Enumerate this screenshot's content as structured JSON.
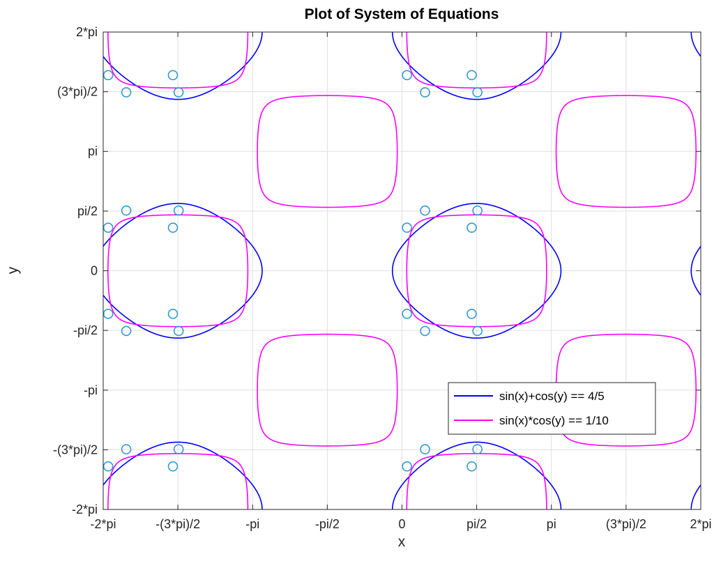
{
  "chart_data": {
    "type": "line",
    "title": "Plot of System of Equations",
    "xlabel": "x",
    "ylabel": "y",
    "xlim": [
      -6.283185,
      6.283185
    ],
    "ylim": [
      -6.283185,
      6.283185
    ],
    "grid": true,
    "x_ticks": {
      "values": [
        -6.283185,
        -4.712389,
        -3.141593,
        -1.570796,
        0,
        1.570796,
        3.141593,
        4.712389,
        6.283185
      ],
      "labels": [
        "-2*pi",
        "-(3*pi)/2",
        "-pi",
        "-pi/2",
        "0",
        "pi/2",
        "pi",
        "(3*pi)/2",
        "2*pi"
      ]
    },
    "y_ticks": {
      "values": [
        -6.283185,
        -4.712389,
        -3.141593,
        -1.570796,
        0,
        1.570796,
        3.141593,
        4.712389,
        6.283185
      ],
      "labels": [
        "-2*pi",
        "-(3*pi)/2",
        "-pi",
        "-pi/2",
        "0",
        "pi/2",
        "pi",
        "(3*pi)/2",
        "2*pi"
      ]
    },
    "legend": {
      "position": "lower-right",
      "entries": [
        {
          "label": "sin(x)+cos(y) == 4/5",
          "color": "#0000ff"
        },
        {
          "label": "sin(x)*cos(y) == 1/10",
          "color": "#ff00ff"
        }
      ]
    },
    "series": [
      {
        "name": "sin(x)+cos(y) == 4/5",
        "kind": "implicit",
        "equation": "sin(x)+cos(y)-0.8",
        "color": "#0000ff"
      },
      {
        "name": "sin(x)*cos(y) == 1/10",
        "kind": "implicit",
        "equation": "sin(x)*cos(y)-0.1",
        "color": "#ff00ff"
      }
    ],
    "intersection_points": {
      "color": "#3399cc",
      "marker": "circle",
      "base_points": [
        [
          0.105,
          1.134
        ],
        [
          0.485,
          1.585
        ],
        [
          1.586,
          1.585
        ],
        [
          1.466,
          1.134
        ],
        [
          0.105,
          -1.134
        ],
        [
          0.485,
          -1.585
        ],
        [
          1.586,
          -1.585
        ],
        [
          1.466,
          -1.134
        ]
      ],
      "visible_points": [
        [
          0.105,
          1.134
        ],
        [
          0.485,
          1.585
        ],
        [
          1.586,
          1.585
        ],
        [
          1.466,
          1.134
        ],
        [
          0.105,
          -1.134
        ],
        [
          0.485,
          -1.585
        ],
        [
          1.586,
          -1.585
        ],
        [
          1.466,
          -1.134
        ],
        [
          -6.178,
          1.134
        ],
        [
          -5.798,
          1.585
        ],
        [
          -4.697,
          1.585
        ],
        [
          -4.817,
          1.134
        ],
        [
          -6.178,
          -1.134
        ],
        [
          -5.798,
          -1.585
        ],
        [
          -4.697,
          -1.585
        ],
        [
          -4.817,
          -1.134
        ],
        [
          0.105,
          5.149
        ],
        [
          0.485,
          4.698
        ],
        [
          1.586,
          4.698
        ],
        [
          1.466,
          5.149
        ],
        [
          -6.178,
          5.149
        ],
        [
          -5.798,
          4.698
        ],
        [
          -4.697,
          4.698
        ],
        [
          -4.817,
          5.149
        ],
        [
          0.105,
          -5.149
        ],
        [
          0.485,
          -4.698
        ],
        [
          1.586,
          -4.698
        ],
        [
          1.466,
          -5.149
        ],
        [
          -6.178,
          -5.149
        ],
        [
          -5.798,
          -4.698
        ],
        [
          -4.697,
          -4.698
        ],
        [
          -4.817,
          -5.149
        ]
      ]
    }
  }
}
